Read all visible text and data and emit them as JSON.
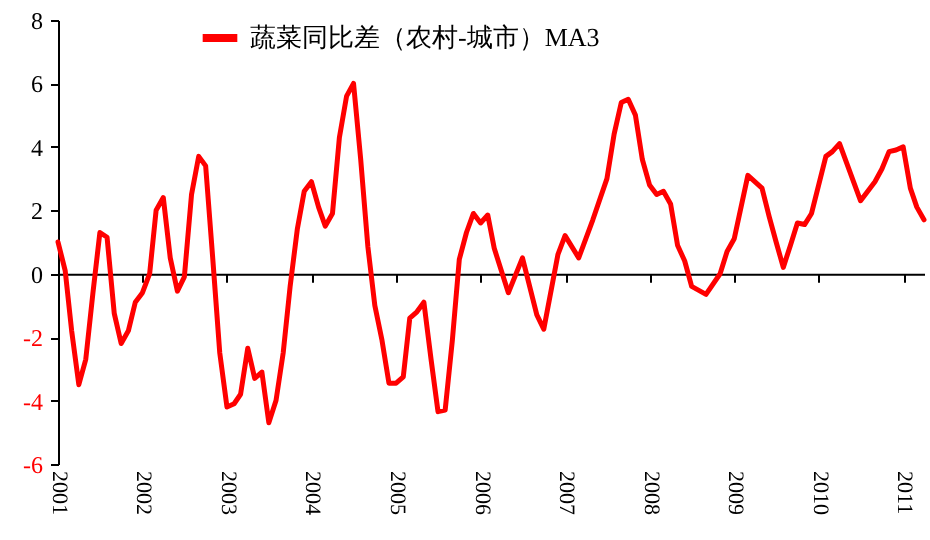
{
  "chart_data": {
    "type": "line",
    "x": [
      "2001-01",
      "2001-02",
      "2001-03",
      "2001-04",
      "2001-05",
      "2001-06",
      "2001-07",
      "2001-08",
      "2001-09",
      "2001-10",
      "2001-11",
      "2001-12",
      "2002-01",
      "2002-02",
      "2002-03",
      "2002-04",
      "2002-05",
      "2002-06",
      "2002-07",
      "2002-08",
      "2002-09",
      "2002-10",
      "2002-11",
      "2002-12",
      "2003-01",
      "2003-02",
      "2003-03",
      "2003-04",
      "2003-05",
      "2003-06",
      "2003-07",
      "2003-08",
      "2003-09",
      "2003-10",
      "2003-11",
      "2003-12",
      "2004-01",
      "2004-02",
      "2004-03",
      "2004-04",
      "2004-05",
      "2004-06",
      "2004-07",
      "2004-08",
      "2004-09",
      "2004-10",
      "2004-11",
      "2004-12",
      "2005-01",
      "2005-02",
      "2005-03",
      "2005-04",
      "2005-05",
      "2005-06",
      "2005-07",
      "2005-08",
      "2005-09",
      "2005-10",
      "2005-11",
      "2005-12",
      "2006-01",
      "2006-02",
      "2006-03",
      "2006-05",
      "2006-07",
      "2006-09",
      "2006-10",
      "2006-12",
      "2007-01",
      "2007-03",
      "2007-05",
      "2007-07",
      "2007-08",
      "2007-09",
      "2007-10",
      "2007-11",
      "2007-12",
      "2008-01",
      "2008-02",
      "2008-03",
      "2008-04",
      "2008-05",
      "2008-06",
      "2008-07",
      "2008-09",
      "2008-11",
      "2008-12",
      "2009-01",
      "2009-03",
      "2009-05",
      "2009-06",
      "2009-07",
      "2009-08",
      "2009-09",
      "2009-10",
      "2009-11",
      "2009-12",
      "2010-02",
      "2010-03",
      "2010-04",
      "2010-07",
      "2010-08",
      "2010-09",
      "2010-10",
      "2010-11",
      "2010-12",
      "2011-01",
      "2011-02",
      "2011-03",
      "2011-04"
    ],
    "series": [
      {
        "name": "蔬菜同比差（农村-城市）MA3",
        "color": "#ff0000",
        "values": [
          1.0,
          0.1,
          -1.8,
          -3.5,
          -2.7,
          -0.6,
          1.3,
          1.15,
          -1.25,
          -2.2,
          -1.8,
          -0.9,
          -0.6,
          0,
          2.0,
          2.4,
          0.5,
          -0.55,
          -0.1,
          2.5,
          3.7,
          3.4,
          0.45,
          -2.5,
          -4.2,
          -4.1,
          -3.8,
          -2.35,
          -3.3,
          -3.1,
          -4.7,
          -4.0,
          -2.5,
          -0.4,
          1.4,
          2.6,
          2.9,
          2.1,
          1.5,
          1.9,
          4.3,
          5.6,
          6.0,
          3.6,
          0.85,
          -1.0,
          -2.1,
          -3.45,
          -3.45,
          -3.25,
          -1.4,
          -1.2,
          -0.9,
          -2.7,
          -4.35,
          -4.3,
          -2.1,
          0.45,
          1.3,
          1.9,
          1.6,
          1.85,
          0.8,
          -0.6,
          0.5,
          -1.3,
          -1.75,
          0.6,
          1.2,
          0.5,
          1.7,
          3.0,
          4.4,
          5.4,
          5.5,
          5.0,
          3.6,
          2.8,
          2.5,
          2.6,
          2.2,
          0.9,
          0.4,
          -0.4,
          -0.65,
          0,
          0.7,
          1.1,
          3.1,
          2.7,
          1.8,
          1.0,
          0.2,
          0.9,
          1.6,
          1.55,
          1.9,
          3.7,
          3.85,
          4.1,
          2.3,
          2.6,
          2.9,
          3.3,
          3.85,
          3.9,
          4.0,
          2.7,
          2.1,
          1.7
        ]
      }
    ],
    "xlim": [
      "2001-01",
      "2011-04"
    ],
    "xticks": [
      "2001",
      "2002",
      "2003",
      "2004",
      "2005",
      "2006",
      "2007",
      "2008",
      "2009",
      "2010",
      "2011"
    ],
    "ylim": [
      -6,
      8
    ],
    "yticks": [
      -6,
      -4,
      -2,
      0,
      2,
      4,
      6,
      8
    ],
    "legend": "top"
  }
}
